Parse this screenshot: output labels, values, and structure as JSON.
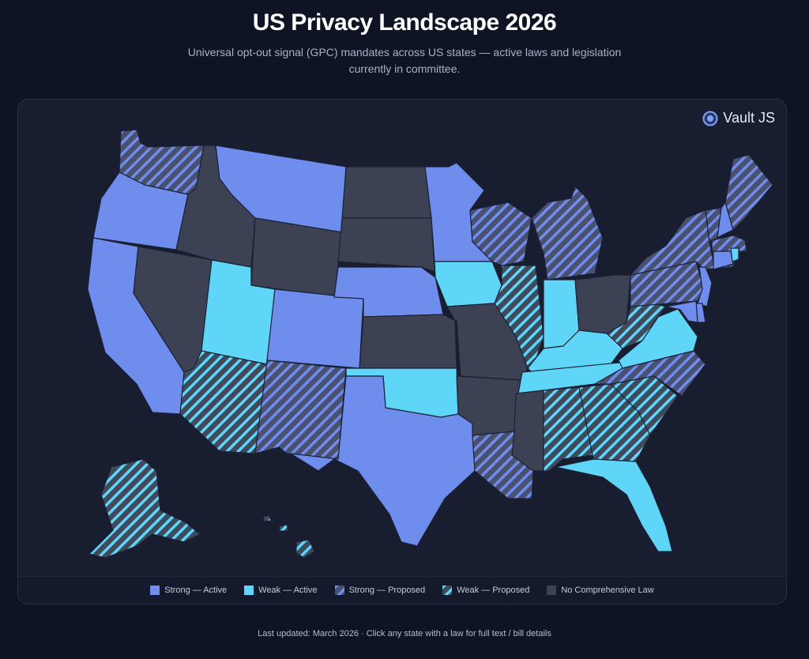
{
  "header": {
    "title": "US Privacy Landscape 2026",
    "subtitle": "Universal opt-out signal (GPC) mandates across US states — active laws and legislation currently in committee."
  },
  "brand": {
    "name": "Vault JS",
    "icon": "vault-logo-icon"
  },
  "colors": {
    "strong": "#6f8ded",
    "weak": "#5fd6f7",
    "none": "#3c4154",
    "stripe_bg": "#4a5070"
  },
  "legend": [
    {
      "id": "strong-active",
      "label": "Strong — Active"
    },
    {
      "id": "weak-active",
      "label": "Weak — Active"
    },
    {
      "id": "strong-proposed",
      "label": "Strong — Proposed"
    },
    {
      "id": "weak-proposed",
      "label": "Weak — Proposed"
    },
    {
      "id": "none",
      "label": "No Comprehensive Law"
    }
  ],
  "states": {
    "WA": "strong-proposed",
    "OR": "strong-active",
    "CA": "strong-active",
    "NV": "none",
    "ID": "none",
    "MT": "strong-active",
    "WY": "none",
    "UT": "weak-active",
    "AZ": "weak-proposed",
    "CO": "strong-active",
    "NM": "strong-proposed",
    "TX": "strong-active",
    "ND": "none",
    "SD": "none",
    "NE": "strong-active",
    "KS": "none",
    "OK": "weak-active",
    "MN": "strong-active",
    "IA": "weak-active",
    "MO": "none",
    "AR": "none",
    "LA": "strong-proposed",
    "WI": "strong-proposed",
    "IL": "weak-proposed",
    "MI": "strong-proposed",
    "IN": "weak-active",
    "OH": "none",
    "KY": "weak-active",
    "TN": "weak-active",
    "MS": "none",
    "AL": "weak-proposed",
    "GA": "weak-proposed",
    "FL": "weak-active",
    "SC": "weak-proposed",
    "NC": "strong-proposed",
    "VA": "weak-active",
    "WV": "weak-proposed",
    "PA": "strong-proposed",
    "NY": "strong-proposed",
    "VT": "strong-proposed",
    "NH": "strong-active",
    "ME": "strong-proposed",
    "MA": "strong-proposed",
    "CT": "strong-active",
    "RI": "weak-active",
    "NJ": "strong-active",
    "DE": "strong-active",
    "MD": "strong-active",
    "AK": "weak-proposed",
    "HI": "weak-proposed"
  },
  "footer": {
    "text": "Last updated: March 2026 · Click any state with a law for full text / bill details"
  }
}
